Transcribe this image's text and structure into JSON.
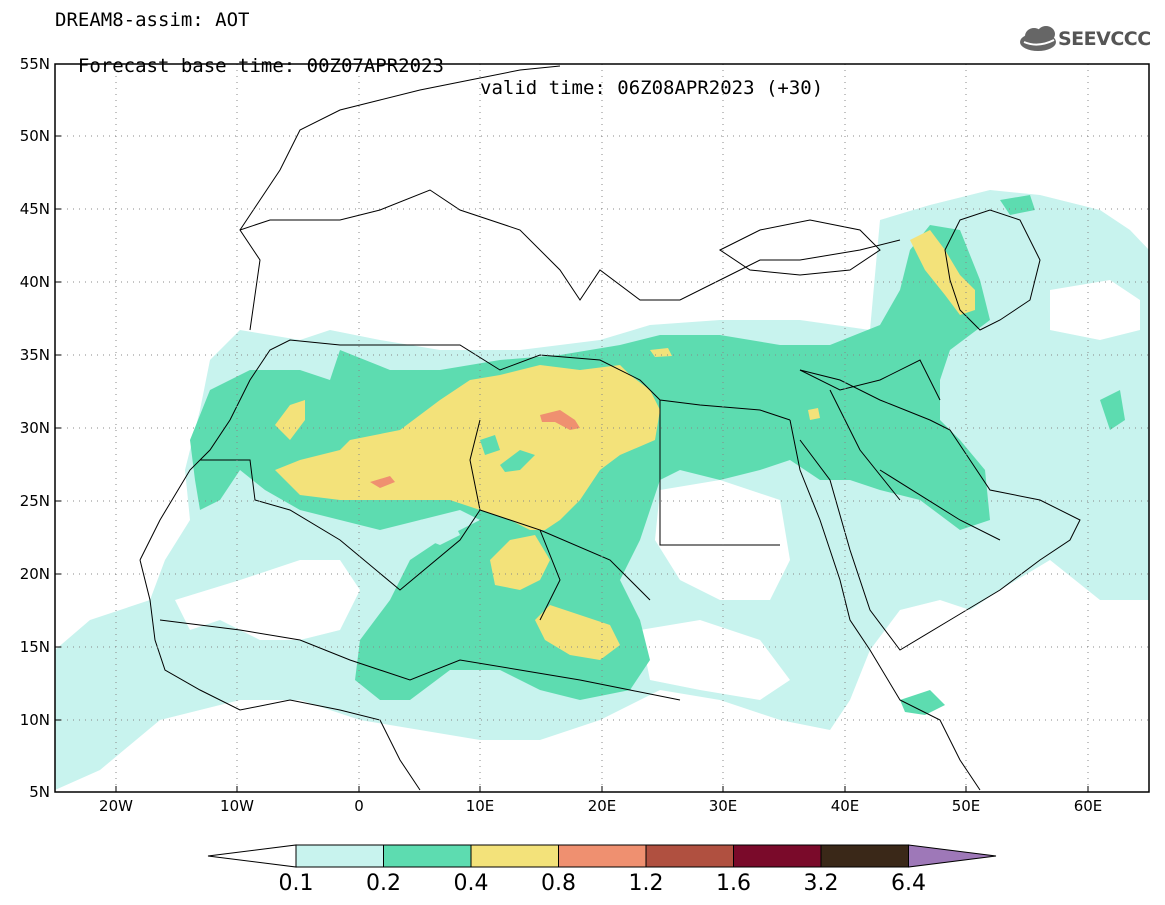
{
  "title": {
    "line1": "DREAM8-assim: AOT",
    "line2_base": "Forecast base time: 00Z07APR2023",
    "line2_valid": "valid time: 06Z08APR2023 (+30)"
  },
  "logo": {
    "text": "SEEVCCC",
    "icon": "cloud-icon"
  },
  "map": {
    "lat_labels": [
      "55N",
      "50N",
      "45N",
      "40N",
      "35N",
      "30N",
      "25N",
      "20N",
      "15N",
      "10N",
      "5N"
    ],
    "lon_labels": [
      "20W",
      "10W",
      "0",
      "10E",
      "20E",
      "30E",
      "40E",
      "50E",
      "60E"
    ]
  },
  "colorbar": {
    "labels": [
      "0.1",
      "0.2",
      "0.4",
      "0.8",
      "1.2",
      "1.6",
      "3.2",
      "6.4"
    ],
    "colors": [
      "#c8f3ee",
      "#5ddcb0",
      "#f3e27a",
      "#ef9070",
      "#b05040",
      "#7a0a2a",
      "#3a2818",
      "#9e78b8"
    ],
    "under_color": "#ffffff",
    "over_color": "#9e78b8"
  }
}
